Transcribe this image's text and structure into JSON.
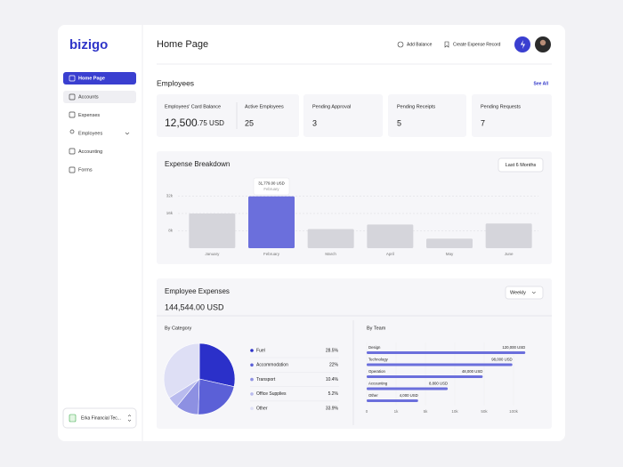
{
  "sidebar": {
    "logo": "bizigo",
    "nav": [
      "Home Page",
      "Accounts",
      "Expenses",
      "Employees",
      "Accounting",
      "Forms"
    ],
    "organization": "Erka Financial Tec..."
  },
  "header": {
    "title": "Home Page",
    "actions": [
      "Add Balance",
      "Create Expense Record"
    ]
  },
  "employees": {
    "title": "Employees",
    "link": "See All",
    "card_balance": {
      "label": "Employees' Card Balance",
      "whole": "12,500",
      "fraction": ".75 USD"
    },
    "stats": [
      {
        "label": "Active Employees",
        "value": 25
      },
      {
        "label": "Pending Approval",
        "value": 3
      },
      {
        "label": "Pending Receipts",
        "value": 5
      },
      {
        "label": "Pending Requests",
        "value": 7
      }
    ]
  },
  "expense_breakdown": {
    "type": "bar",
    "title": "Expense Breakdown",
    "period": "Last 6 Months",
    "categories": [
      "January",
      "February",
      "March",
      "April",
      "May",
      "June"
    ],
    "values": [
      16000,
      31779,
      8800,
      10900,
      4400,
      11400
    ],
    "color": "#d5d5db",
    "highlight_color": "#6b6fdc",
    "tooltip_value": "31,779.00 USD",
    "ylim": [
      0,
      32000
    ],
    "yticks": [
      {
        "value": 8000,
        "label": "8k"
      },
      {
        "value": 16000,
        "label": "16k"
      },
      {
        "value": 32000,
        "label": "32k"
      }
    ],
    "grid": true
  },
  "employee_expenses": {
    "title": "Employee Expenses",
    "period": "Weekly",
    "total": "144,544.00 USD",
    "by_category": {
      "type": "pie",
      "title": "By Category",
      "categories": [
        "Fuel",
        "Accommodation",
        "Transport",
        "Office Supplies",
        "Other"
      ],
      "values": [
        28.5,
        22,
        10.4,
        5.2,
        33.9
      ],
      "value_labels": [
        "28.5%",
        "22%",
        "10.4%",
        "5.2%",
        "33.9%"
      ],
      "colors": [
        "#2b30c9",
        "#5b60d7",
        "#8d90e2",
        "#b9bbee",
        "#dedff5"
      ]
    },
    "by_team": {
      "type": "bar",
      "orientation": "horizontal",
      "title": "By Team",
      "categories": [
        "Design",
        "Technology",
        "Operation",
        "Accounting",
        "Other"
      ],
      "values": [
        120000,
        98000,
        48000,
        8800,
        4000
      ],
      "value_labels": [
        "120,000 USD",
        "98,000 USD",
        "48,000 USD",
        "8,800 USD",
        "4,000 USD"
      ],
      "color": "#6b6fdc",
      "xlim": [
        0,
        120000
      ],
      "xticks": [
        0,
        {
          "value": 1000,
          "label": "1k"
        },
        {
          "value": 5000,
          "label": "5k"
        },
        {
          "value": 10000,
          "label": "10k"
        },
        {
          "value": 50000,
          "label": "50k"
        },
        {
          "value": 100000,
          "label": "100k"
        }
      ],
      "grid": true
    }
  }
}
